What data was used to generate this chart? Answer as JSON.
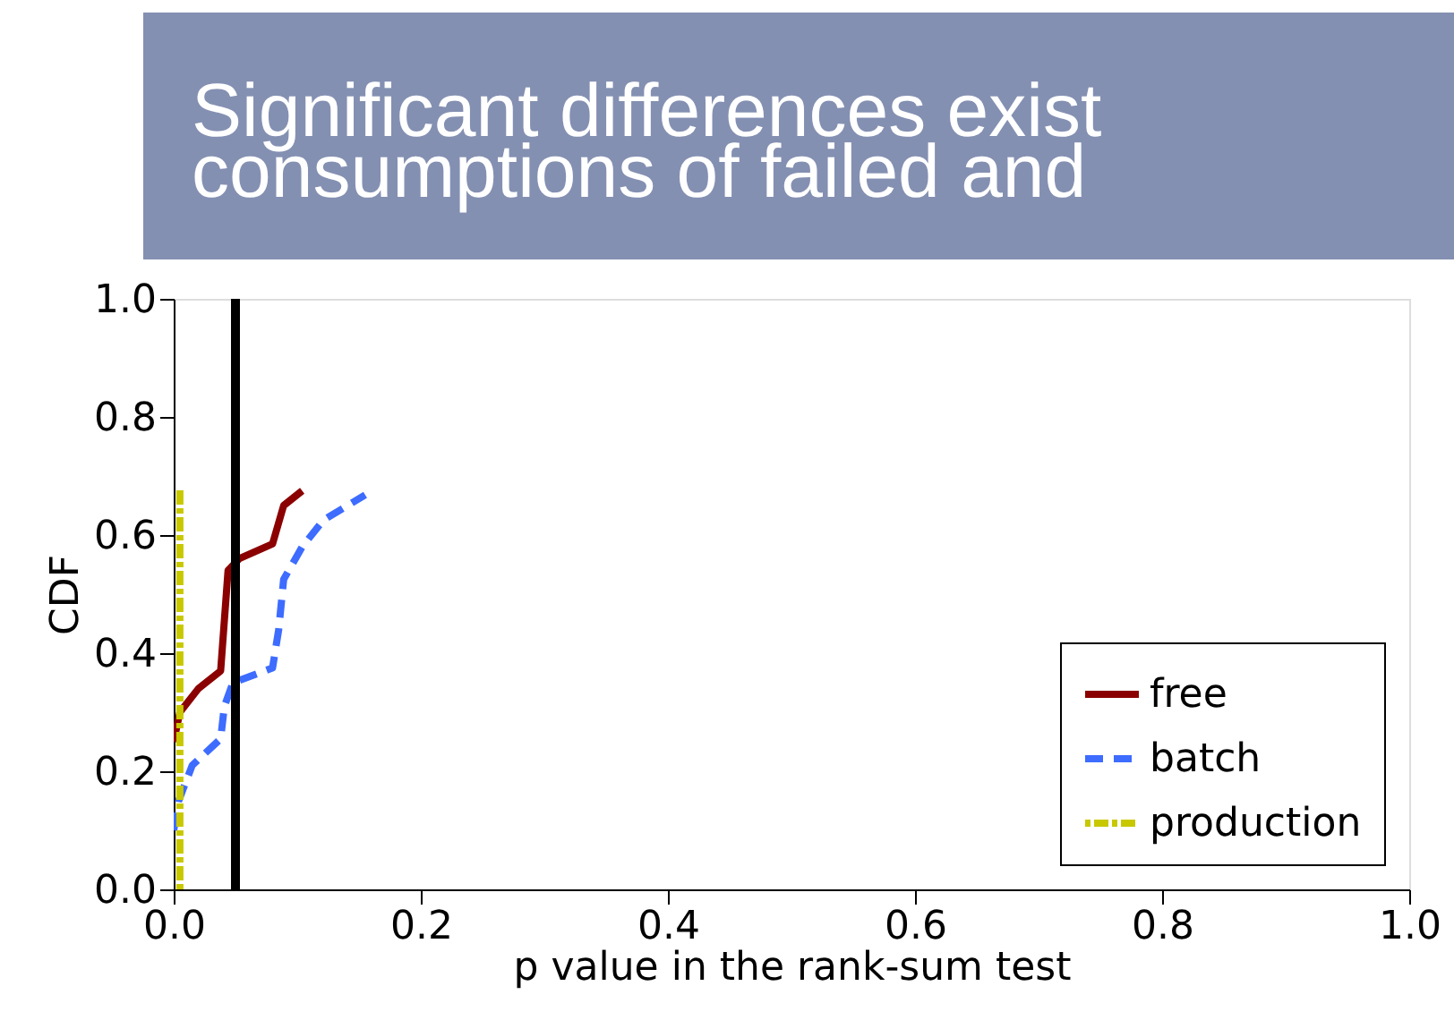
{
  "chart_data": {
    "type": "line",
    "title": "Significant differences exist\nconsumptions of failed and",
    "xlabel": "p value in the rank-sum test",
    "ylabel": "CDF",
    "series": [
      {
        "name": "free",
        "color": "#8b0000",
        "line_style": "solid",
        "x": [
          0,
          0.005,
          0.02,
          0.038,
          0.044,
          0.053,
          0.08,
          0.089,
          0.104
        ],
        "values": [
          0.25,
          0.3,
          0.34,
          0.37,
          0.54,
          0.56,
          0.585,
          0.65,
          0.675
        ]
      },
      {
        "name": "batch",
        "color": "#3d6cff",
        "line_style": "dashed",
        "x": [
          0,
          0.004,
          0.015,
          0.038,
          0.041,
          0.048,
          0.08,
          0.085,
          0.089,
          0.104,
          0.121,
          0.155
        ],
        "values": [
          0.1,
          0.15,
          0.21,
          0.255,
          0.31,
          0.35,
          0.375,
          0.44,
          0.525,
          0.58,
          0.625,
          0.668
        ]
      },
      {
        "name": "production",
        "color": "#c8c800",
        "line_style": "dotted",
        "x": [
          0.005,
          0.005,
          0.005
        ],
        "values": [
          0,
          0.34,
          0.68
        ]
      }
    ],
    "xlim": [
      0,
      1
    ],
    "ylim": [
      0,
      1
    ],
    "xticks": [
      {
        "value": 0,
        "label": "0.0"
      },
      0.2,
      0.4,
      0.6,
      0.8,
      {
        "value": 1,
        "label": "1.0"
      }
    ],
    "yticks": [
      {
        "value": 0,
        "label": "0.0"
      },
      0.2,
      0.4,
      0.6,
      0.8,
      {
        "value": 1,
        "label": "1.0"
      }
    ],
    "ref_lines": [
      {
        "axis": "x",
        "value": 0.05,
        "color": "#000000"
      }
    ],
    "grid": false,
    "legend": "bottom right"
  }
}
